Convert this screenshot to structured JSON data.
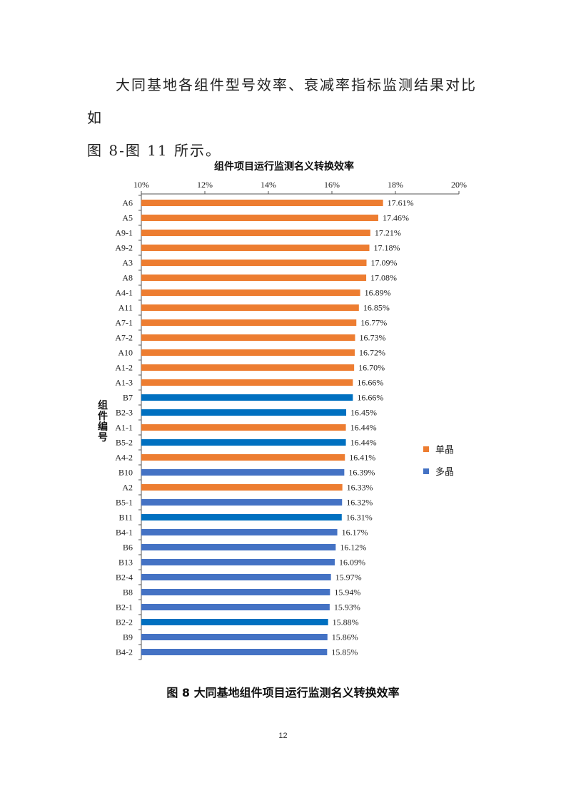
{
  "paragraph": {
    "line1": "大同基地各组件型号效率、衰减率指标监测结果对比如",
    "line2": "图 8-图 11 所示。"
  },
  "caption": "图 8    大同基地组件项目运行监测名义转换效率",
  "page_number": "12",
  "colors": {
    "mono": "#ED7D31",
    "poly": "#4472C4",
    "poly_dark": "#0070C0"
  },
  "chart_data": {
    "type": "bar",
    "orientation": "horizontal",
    "title": "组件项目运行监测名义转换效率",
    "ylabel": "组件编号",
    "xlabel": "",
    "xlim": [
      10,
      20
    ],
    "xticks": [
      "10%",
      "12%",
      "14%",
      "16%",
      "18%",
      "20%"
    ],
    "tick_values": [
      10,
      12,
      14,
      16,
      18,
      20
    ],
    "grid": false,
    "legend_position": "right",
    "legend": [
      {
        "name": "单晶",
        "color": "#ED7D31"
      },
      {
        "name": "多晶",
        "color": "#4472C4"
      }
    ],
    "categories": [
      "A6",
      "A5",
      "A9-1",
      "A9-2",
      "A3",
      "A8",
      "A4-1",
      "A11",
      "A7-1",
      "A7-2",
      "A10",
      "A1-2",
      "A1-3",
      "B7",
      "B2-3",
      "A1-1",
      "B5-2",
      "A4-2",
      "B10",
      "A2",
      "B5-1",
      "B11",
      "B4-1",
      "B6",
      "B13",
      "B2-4",
      "B8",
      "B2-1",
      "B2-2",
      "B9",
      "B4-2"
    ],
    "values": [
      17.61,
      17.46,
      17.21,
      17.18,
      17.09,
      17.08,
      16.89,
      16.85,
      16.77,
      16.73,
      16.72,
      16.7,
      16.66,
      16.66,
      16.45,
      16.44,
      16.44,
      16.41,
      16.39,
      16.33,
      16.32,
      16.31,
      16.17,
      16.12,
      16.09,
      15.97,
      15.94,
      15.93,
      15.88,
      15.86,
      15.85
    ],
    "labels": [
      "17.61%",
      "17.46%",
      "17.21%",
      "17.18%",
      "17.09%",
      "17.08%",
      "16.89%",
      "16.85%",
      "16.77%",
      "16.73%",
      "16.72%",
      "16.70%",
      "16.66%",
      "16.66%",
      "16.45%",
      "16.44%",
      "16.44%",
      "16.41%",
      "16.39%",
      "16.33%",
      "16.32%",
      "16.31%",
      "16.17%",
      "16.12%",
      "16.09%",
      "15.97%",
      "15.94%",
      "15.93%",
      "15.88%",
      "15.86%",
      "15.85%"
    ],
    "bar_colors": [
      "#ED7D31",
      "#ED7D31",
      "#ED7D31",
      "#ED7D31",
      "#ED7D31",
      "#ED7D31",
      "#ED7D31",
      "#ED7D31",
      "#ED7D31",
      "#ED7D31",
      "#ED7D31",
      "#ED7D31",
      "#ED7D31",
      "#0070C0",
      "#0070C0",
      "#ED7D31",
      "#0070C0",
      "#ED7D31",
      "#4472C4",
      "#ED7D31",
      "#4472C4",
      "#0070C0",
      "#4472C4",
      "#4472C4",
      "#4472C4",
      "#4472C4",
      "#4472C4",
      "#4472C4",
      "#0070C0",
      "#4472C4",
      "#4472C4"
    ]
  }
}
